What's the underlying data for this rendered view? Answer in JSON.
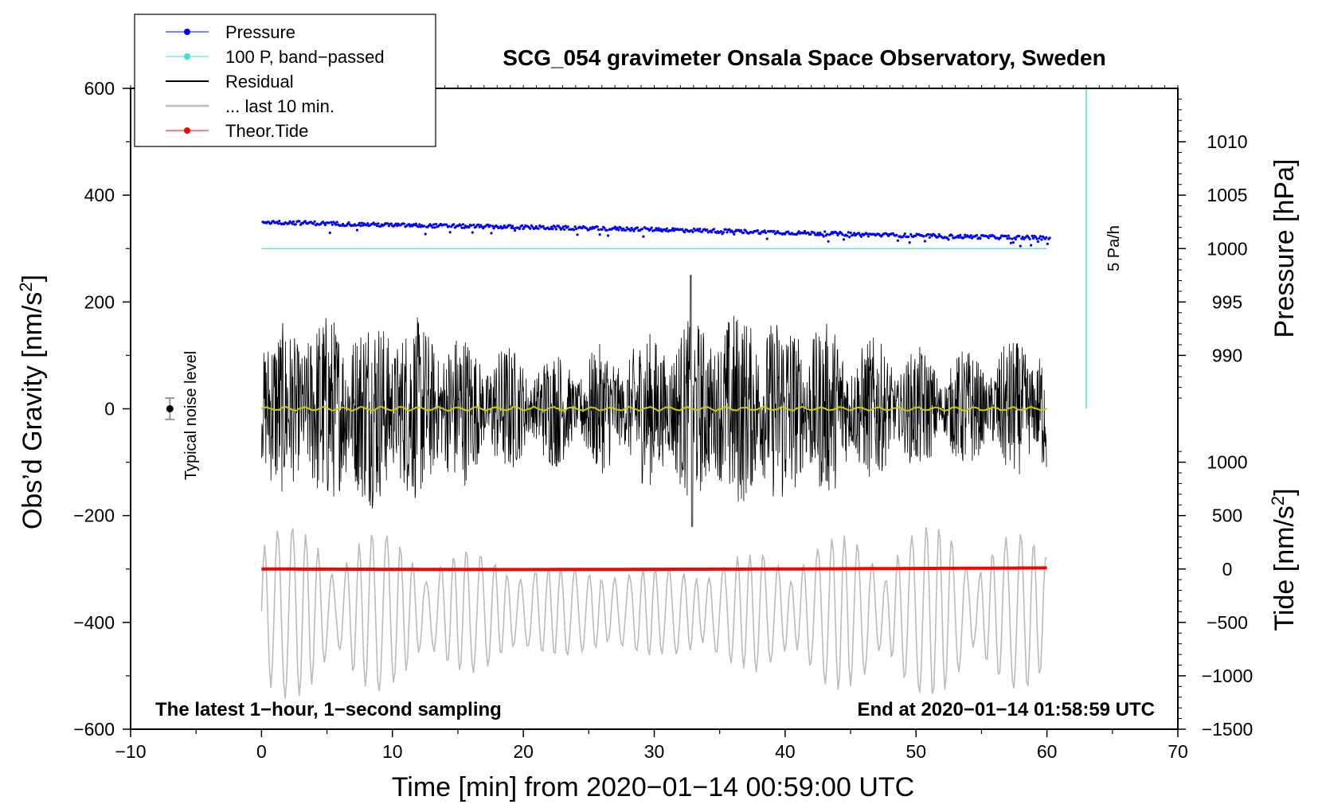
{
  "chart_data": {
    "type": "line",
    "title": "SCG_054 gravimeter Onsala Space Observatory, Sweden",
    "xlabel": "Time [min] from 2020−01−14 00:59:00 UTC",
    "ylabel_main": "Obs’d Gravity [nm/s",
    "ylabel_main_sup": "2",
    "ylabel_main_end": "]",
    "ylabel_pressure": "Pressure [hPa]",
    "ylabel_tide": "Tide [nm/s",
    "ylabel_tide_sup": "2",
    "ylabel_tide_end": "]",
    "xlim": [
      -10,
      70
    ],
    "ylim": [
      -600,
      600
    ],
    "x_ticks": [
      -10,
      0,
      10,
      20,
      30,
      40,
      50,
      60,
      70
    ],
    "x_tick_labels": [
      "−10",
      "0",
      "10",
      "20",
      "30",
      "40",
      "50",
      "60",
      "70"
    ],
    "y_ticks": [
      600,
      400,
      200,
      0,
      -200,
      -400,
      -600
    ],
    "y_tick_labels": [
      "600",
      "400",
      "200",
      "0",
      "−200",
      "−400",
      "−600"
    ],
    "pressure_ticks": [
      1010,
      1005,
      1000,
      995,
      990
    ],
    "pressure_tick_labels": [
      "1010",
      "1005",
      "1000",
      "995",
      "990"
    ],
    "pressure_axis_ref": {
      "hpa": [
        1000,
        1010
      ],
      "gravity": [
        300,
        500
      ]
    },
    "tide_ticks": [
      1000,
      500,
      0,
      -500,
      -1000,
      -1500
    ],
    "tide_tick_labels": [
      "1000",
      "500",
      "0",
      "−500",
      "−1000",
      "−1500"
    ],
    "tide_axis_ref": {
      "tide": [
        0,
        -1500
      ],
      "gravity": [
        -300,
        -600
      ]
    },
    "legend": [
      {
        "label": "Pressure",
        "color": "#0000ff",
        "style": "line-dot"
      },
      {
        "label": "100 P, band−passed",
        "color": "#40e0d0",
        "style": "line-dot"
      },
      {
        "label": "Residual",
        "color": "#000000",
        "style": "line"
      },
      {
        "label": "... last 10 min.",
        "color": "#bbbbbb",
        "style": "line"
      },
      {
        "label": "Theor.Tide",
        "color": "#ff0000",
        "style": "line-dot"
      }
    ],
    "legend_position": "top-left",
    "series": [
      {
        "name": "Pressure",
        "axis": "pressure",
        "unit": "hPa",
        "x": [
          0,
          10,
          20,
          30,
          40,
          50,
          60
        ],
        "values": [
          1002.5,
          1002.2,
          1002.0,
          1001.8,
          1001.5,
          1001.2,
          1001.0
        ],
        "color": "#0000ff"
      },
      {
        "name": "100 P, band-passed",
        "axis": "gravity",
        "x": [
          0,
          60
        ],
        "values": [
          300,
          300
        ],
        "color": "#40e0d0"
      },
      {
        "name": "Residual",
        "axis": "gravity",
        "x_range": [
          0,
          60
        ],
        "approx_amplitude": 150,
        "max": 250,
        "min": -220,
        "color": "#000000"
      },
      {
        "name": "Residual (smoothed)",
        "axis": "gravity",
        "x": [
          0,
          60
        ],
        "values": [
          0,
          0
        ],
        "color": "#cccc00"
      },
      {
        "name": "... last 10 min.",
        "axis": "gravity",
        "x_range": [
          0,
          60
        ],
        "approx_center": -380,
        "approx_amplitude": 130,
        "color": "#bbbbbb"
      },
      {
        "name": "Theor.Tide",
        "axis": "tide",
        "unit": "nm/s2",
        "x": [
          0,
          20,
          40,
          60
        ],
        "values": [
          0,
          -5,
          0,
          10
        ],
        "color": "#ff0000"
      }
    ],
    "rate_marker": {
      "label": "5 Pa/h",
      "x": 63,
      "y_range": [
        0,
        600
      ],
      "color": "#40e0d0"
    },
    "noise_marker": {
      "label": "Typical noise level",
      "x": -7,
      "y": 0,
      "error": 20
    },
    "annotation_left": "The latest 1−hour, 1−second sampling",
    "annotation_right": "End at 2020−01−14 01:58:59 UTC"
  }
}
